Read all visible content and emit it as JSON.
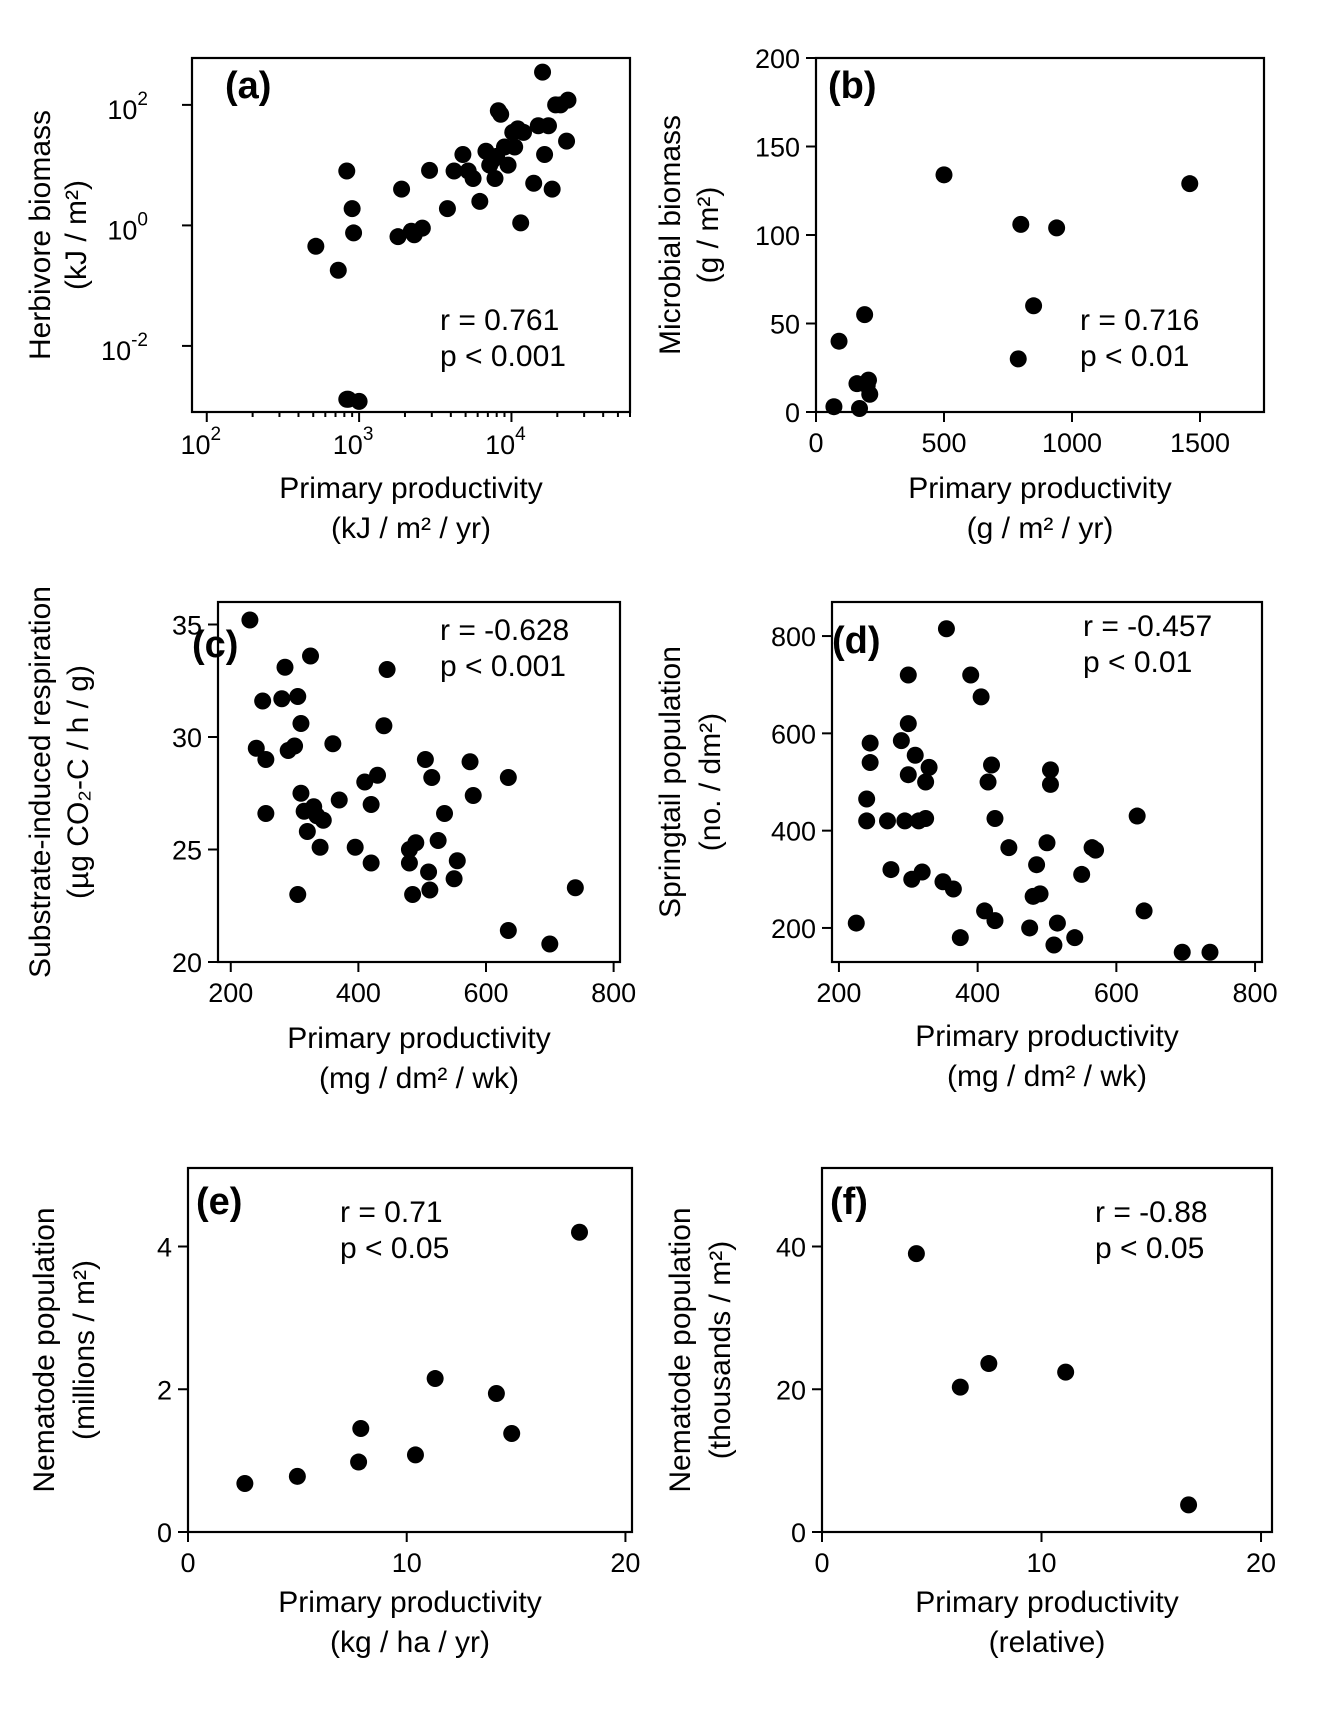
{
  "chart_data": [
    {
      "type": "scatter",
      "panel_label": "(a)",
      "xlabel": "Primary productivity",
      "xunit": "(kJ / m² / yr)",
      "ylabel": "Herbivore biomass",
      "yunit": "(kJ / m²)",
      "xscale": "log",
      "yscale": "log",
      "xlim": [
        80,
        60000
      ],
      "ylim": [
        0.0008,
        600
      ],
      "xticks": [
        100,
        1000,
        10000
      ],
      "xtick_labels": [
        "10",
        "10",
        "10"
      ],
      "xtick_exp": [
        "2",
        "3",
        "4"
      ],
      "yticks": [
        0.01,
        1,
        100
      ],
      "ytick_labels": [
        "10",
        "10",
        "10"
      ],
      "ytick_exp": [
        "-2",
        "0",
        "2"
      ],
      "stats": [
        "r = 0.761",
        "p < 0.001"
      ],
      "x": [
        520,
        730,
        830,
        900,
        920,
        830,
        850,
        1000,
        1800,
        1900,
        2300,
        2200,
        2600,
        2900,
        3800,
        4200,
        4800,
        5200,
        5600,
        6200,
        6800,
        7500,
        8000,
        7200,
        8200,
        9000,
        9500,
        10200,
        11000,
        10500,
        11500,
        12000,
        14000,
        15000,
        16000,
        16500,
        17500,
        18500,
        19500,
        21000,
        23500,
        23000,
        8500,
        7800
      ],
      "y": [
        0.45,
        0.18,
        8,
        1.9,
        0.75,
        0.0013,
        0.0013,
        0.0012,
        0.65,
        4,
        0.7,
        0.8,
        0.9,
        8.2,
        1.9,
        8,
        15,
        8,
        6,
        2.5,
        17,
        12,
        14,
        10,
        80,
        20,
        10,
        35,
        40,
        20,
        1.1,
        35,
        5,
        45,
        350,
        15,
        45,
        4,
        100,
        100,
        120,
        25,
        70,
        6
      ],
      "colors": {
        "points": "#000000"
      }
    },
    {
      "type": "scatter",
      "panel_label": "(b)",
      "xlabel": "Primary productivity",
      "xunit": "(g / m² / yr)",
      "ylabel": "Microbial biomass",
      "yunit": "(g / m²)",
      "xlim": [
        0,
        1750
      ],
      "ylim": [
        0,
        200
      ],
      "xticks": [
        0,
        500,
        1000,
        1500
      ],
      "yticks": [
        0,
        50,
        100,
        150,
        200
      ],
      "stats": [
        "r = 0.716",
        "p < 0.01"
      ],
      "x": [
        70,
        90,
        160,
        170,
        190,
        200,
        210,
        205,
        500,
        790,
        800,
        850,
        940,
        1460
      ],
      "y": [
        3,
        40,
        16,
        2,
        55,
        15,
        10,
        18,
        134,
        30,
        106,
        60,
        104,
        129
      ]
    },
    {
      "type": "scatter",
      "panel_label": "(c)",
      "xlabel": "Primary productivity",
      "xunit": "(mg / dm² / wk)",
      "ylabel": "Substrate-induced respiration",
      "yunit": "(µg CO₂-C / h / g)",
      "xlim": [
        180,
        810
      ],
      "ylim": [
        20,
        36
      ],
      "xticks": [
        200,
        400,
        600,
        800
      ],
      "yticks": [
        20,
        25,
        30,
        35
      ],
      "stats": [
        "r = -0.628",
        "p < 0.001"
      ],
      "x": [
        230,
        240,
        250,
        255,
        255,
        280,
        285,
        290,
        300,
        305,
        310,
        310,
        305,
        315,
        320,
        325,
        330,
        335,
        340,
        345,
        360,
        370,
        395,
        410,
        420,
        420,
        430,
        440,
        445,
        480,
        480,
        485,
        490,
        505,
        510,
        512,
        515,
        525,
        535,
        550,
        555,
        575,
        580,
        635,
        635,
        700,
        740
      ],
      "y": [
        35.2,
        29.5,
        31.6,
        29,
        26.6,
        31.7,
        33.1,
        29.4,
        29.6,
        31.8,
        30.6,
        27.5,
        23,
        26.7,
        25.8,
        33.6,
        26.9,
        26.5,
        25.1,
        26.3,
        29.7,
        27.2,
        25.1,
        28,
        24.4,
        27,
        28.3,
        30.5,
        33,
        25,
        24.4,
        23,
        25.3,
        29,
        24,
        23.2,
        28.2,
        25.4,
        26.6,
        23.7,
        24.5,
        28.9,
        27.4,
        28.2,
        21.4,
        20.8,
        23.3
      ]
    },
    {
      "type": "scatter",
      "panel_label": "(d)",
      "xlabel": "Primary productivity",
      "xunit": "(mg / dm² / wk)",
      "ylabel": "Springtail population",
      "yunit": "(no. / dm²)",
      "xlim": [
        190,
        810
      ],
      "ylim": [
        130,
        870
      ],
      "xticks": [
        200,
        400,
        600,
        800
      ],
      "yticks": [
        200,
        400,
        600,
        800
      ],
      "stats": [
        "r = -0.457",
        "p < 0.01"
      ],
      "x": [
        225,
        240,
        240,
        245,
        245,
        270,
        275,
        290,
        295,
        300,
        300,
        300,
        305,
        310,
        315,
        320,
        325,
        325,
        330,
        350,
        355,
        365,
        375,
        390,
        405,
        410,
        415,
        420,
        425,
        425,
        445,
        475,
        480,
        485,
        490,
        500,
        505,
        505,
        510,
        515,
        540,
        550,
        565,
        570,
        630,
        640,
        695,
        735
      ],
      "y": [
        210,
        465,
        420,
        540,
        580,
        420,
        320,
        585,
        420,
        720,
        620,
        515,
        300,
        555,
        420,
        315,
        500,
        425,
        530,
        295,
        815,
        280,
        180,
        720,
        675,
        235,
        500,
        535,
        425,
        215,
        365,
        200,
        265,
        330,
        270,
        375,
        525,
        495,
        165,
        210,
        180,
        310,
        365,
        360,
        430,
        235,
        150,
        150
      ]
    },
    {
      "type": "scatter",
      "panel_label": "(e)",
      "xlabel": "Primary productivity",
      "xunit": "(kg / ha / yr)",
      "ylabel": "Nematode population",
      "yunit": "(millions / m²)",
      "xlim": [
        0,
        20.3
      ],
      "ylim": [
        0,
        5.1
      ],
      "xticks": [
        0,
        10,
        20
      ],
      "yticks": [
        0,
        2,
        4
      ],
      "stats": [
        "r = 0.71",
        "p < 0.05"
      ],
      "x": [
        2.6,
        5,
        7.8,
        7.9,
        10.4,
        11.3,
        14.1,
        14.8,
        17.9
      ],
      "y": [
        0.68,
        0.78,
        0.98,
        1.45,
        1.08,
        2.15,
        1.94,
        1.38,
        4.2
      ]
    },
    {
      "type": "scatter",
      "panel_label": "(f)",
      "xlabel": "Primary productivity",
      "xunit": "(relative)",
      "ylabel": "Nematode population",
      "yunit": "(thousands / m²)",
      "xlim": [
        0,
        20.5
      ],
      "ylim": [
        0,
        51
      ],
      "xticks": [
        0,
        10,
        20
      ],
      "yticks": [
        0,
        20,
        40
      ],
      "stats": [
        "r = -0.88",
        "p < 0.05"
      ],
      "x": [
        4.3,
        6.3,
        7.6,
        11.1,
        16.7
      ],
      "y": [
        39,
        20.3,
        23.6,
        22.4,
        3.8
      ]
    }
  ]
}
